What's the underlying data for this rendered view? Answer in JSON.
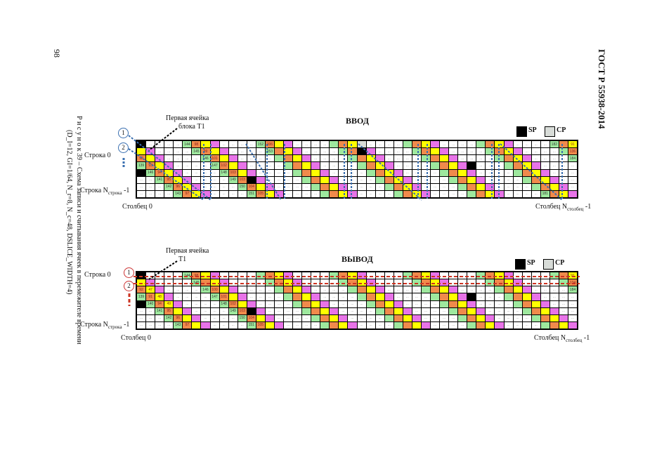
{
  "header": {
    "standard": "ГОСТ Р 55938-2014",
    "page_number": "98"
  },
  "caption": {
    "line1": "Р и с у н о к 39 – Схема записи и считывания ячеек в перемежителе времени",
    "line2": "(D_I=12, GI=1/64, N_r=8, N_c=48, DSLICE_WIDTH=4)"
  },
  "colors": {
    "green": "#9ee89e",
    "orange": "#f08a4b",
    "yellow": "#ffff00",
    "magenta": "#e873e8",
    "sp": "#000000",
    "cp": "#d8dcd8",
    "input_arrows": "#3a6fb0",
    "output_lines": "#cc3322"
  },
  "placeholder": "...",
  "legend": {
    "sp": "SP",
    "cp": "CP"
  },
  "input": {
    "title": "ВВОД",
    "first_cell_label_1": "Первая      ячейка",
    "first_cell_label_2": "блока T1",
    "row_first": "Строка 0",
    "row_last": "Строка N",
    "row_last_sub": "строка",
    "row_last_suffix": " -1",
    "col_first": "Столбец 0",
    "col_last": "Столбец N",
    "col_last_sub": "столбец",
    "col_last_suffix": " -1",
    "markers": [
      "1",
      "2"
    ],
    "rows": [
      "KWWWWGOYMWWWWGOYMWWWWGOYCWWWWGOYMWWWWGOYMWWWWGOY",
      "YMWWWWGOYMWWWWGOYMWWWWGOKMWWWWGOYMWWWWGOYMWWWWGO",
      "OYMWWWWGOYMWWWWGOYMWWWWGOYMWWWWGOYMWWWWGOYMWWWWG",
      "GOYMWWWWGOYMWWWWGOYMWWWWGOYMWWWWGOYMKWWWGOYMWWWW",
      "KGOYMWWWWGOYMWWWWGOYMWWWWGOYMWWWWGOYMWWWWGOYMWWW",
      "WWGOYMWWWWGOKMWWWWGOYMWWWWGOYMWWWWGOYMWWWWGOYMWW",
      "WWWGOYMWWWWGOYMWWWWGOYMWWWWGOYMWWWWGOYMWWWWGOYMW",
      "WWWWGOYMWWWWGOYMWWWWGOYMWWWWGOYMWWWWGOYMWWWWGOYM"
    ],
    "values": {
      "0,5": "144",
      "0,6": "98",
      "0,13": "152",
      "0,14": "106",
      "0,45": "182",
      "0,47": "91",
      "1,6": "145",
      "1,7": "99",
      "1,14": "153",
      "1,47": "136",
      "2,0": "92",
      "2,7": "146",
      "2,8": "101",
      "2,47": "184",
      "3,0": "139",
      "3,1": "93",
      "3,8": "147",
      "3,9": "102",
      "4,1": "146",
      "4,2": "94",
      "4,9": "148",
      "4,10": "103",
      "5,2": "141",
      "5,3": "95",
      "5,10": "149",
      "5,11": "103",
      "6,3": "142",
      "6,4": "96",
      "6,11": "150",
      "6,12": "104",
      "7,4": "143",
      "7,5": "97",
      "7,12": "151",
      "7,13": "105",
      "7,44": "181"
    }
  },
  "output": {
    "title": "ВЫВОД",
    "first_cell_label_1": "Первая      ячейка",
    "first_cell_label_2": "T1",
    "row_first": "Строка 0",
    "row_last": "Строка N",
    "row_last_sub": "строка",
    "row_last_suffix": " -1",
    "col_first": "Столбец 0",
    "col_last": "Столбец N",
    "col_last_sub": "столбец",
    "col_last_suffix": " -1",
    "markers": [
      "1",
      "2"
    ],
    "rows": [
      "KWWWWGOYMWWWWGOYMWWWWGOYMWWWWGOYMWWWWGOYMWWWWGOY",
      "YMWWWWGOYMWWWWGOYMWWWWGOYMWWWWGOYMWWWWGOYMWWWWGO",
      "OYMWWWWGOYMWWWWGOYMWWWWGOYMWWWWGOYMWWWWGOYMWWWWG",
      "GOYMWWWWGOYMWWWWGOYMWWWWGOYMWWWWGOYMKWWWGOYMWWWW",
      "KGOYMWWWWGOYMWWWWGOYMWWWWGOYMWWWWGOYMWWWWGOYMWWW",
      "WWGOYMWWWWGOKMWWWWGOYMWWWWGOYMWWWWGOYMWWWWGOYMWW",
      "WWWGOYMWWWWGOYMWWWWGOYMWWWWGOYMWWWWGOYMWWWWGOYMW",
      "WWWWGOYMWWWWGOYMWWWWGOYMWWWWGOYMWWWWGOYMWWWWGOYM"
    ],
    "values": {
      "0,5": "144",
      "0,6": "98",
      "1,6": "145",
      "2,0": "92",
      "2,1": "47",
      "2,7": "146",
      "2,8": "100",
      "3,0": "139",
      "3,1": "91",
      "3,2": "48",
      "3,8": "147",
      "3,9": "101",
      "4,1": "140",
      "4,2": "94",
      "4,3": "49",
      "4,9": "148",
      "4,10": "102",
      "5,2": "141",
      "5,3": "95",
      "5,10": "149",
      "5,11": "103",
      "6,3": "142",
      "6,4": "96",
      "6,11": "150",
      "6,12": "104",
      "7,4": "143",
      "7,5": "97",
      "7,12": "151",
      "7,13": "105",
      "0,47": "91",
      "1,47": "134",
      "2,47": "184"
    }
  }
}
